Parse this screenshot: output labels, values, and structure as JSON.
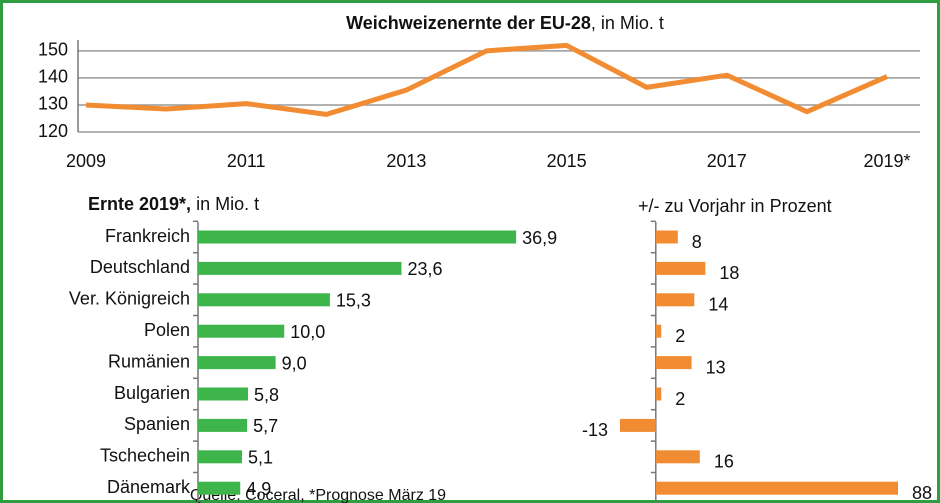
{
  "chart_data": [
    {
      "type": "line",
      "title": "Weichweizenernte der EU-28",
      "title_suffix": ", in Mio. t",
      "categories": [
        "2009",
        null,
        "2011",
        null,
        "2013",
        null,
        "2015",
        null,
        "2017",
        null,
        "2019*"
      ],
      "series": [
        {
          "name": "Weichweizenernte",
          "color": "#f28c33",
          "values": [
            130,
            128.5,
            130.5,
            126.5,
            135.5,
            150,
            152,
            136.5,
            141,
            127.5,
            140.5
          ]
        }
      ],
      "ylim": [
        120,
        154
      ],
      "yticks": [
        120,
        130,
        140,
        150
      ],
      "grid": true
    },
    {
      "type": "hbar",
      "title": "Ernte 2019*,",
      "title_suffix": " in  Mio. t",
      "categories": [
        "Frankreich",
        "Deutschland",
        "Ver. Königreich",
        "Polen",
        "Rumänien",
        "Bulgarien",
        "Spanien",
        "Tschechein",
        "Dänemark"
      ],
      "values": [
        36.9,
        23.6,
        15.3,
        10.0,
        9.0,
        5.8,
        5.7,
        5.1,
        4.9
      ],
      "value_labels": [
        "36,9",
        "23,6",
        "15,3",
        "10,0",
        "9,0",
        "5,8",
        "5,7",
        "5,1",
        "4,9"
      ],
      "color": "#3db54a",
      "xlim": [
        0,
        37
      ]
    },
    {
      "type": "hbar",
      "title": "+/- zu Vorjahr in Prozent",
      "values": [
        8,
        18,
        14,
        2,
        13,
        2,
        -13,
        16,
        88
      ],
      "color": "#f28c33",
      "xlim": [
        -13,
        88
      ]
    }
  ],
  "source": "Quelle: Coceral, *Prognose März 19"
}
